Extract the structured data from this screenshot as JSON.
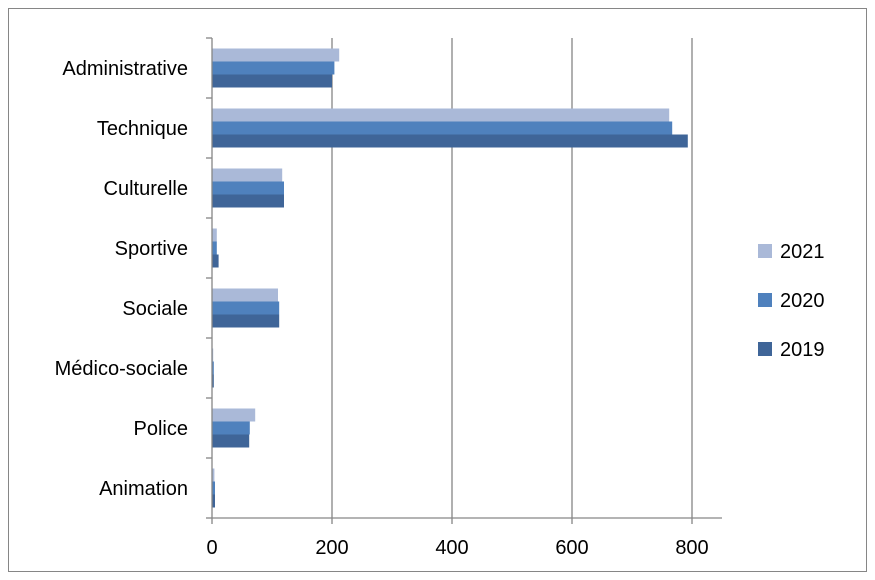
{
  "chart_data": {
    "type": "bar",
    "orientation": "horizontal",
    "title": "",
    "xlabel": "",
    "ylabel": "",
    "categories": [
      "Animation",
      "Police",
      "Médico-sociale",
      "Sociale",
      "Sportive",
      "Culturelle",
      "Technique",
      "Administrative"
    ],
    "series": [
      {
        "name": "2021",
        "color": "#AAB9D8",
        "values": [
          4,
          72,
          2,
          110,
          8,
          117,
          762,
          212
        ]
      },
      {
        "name": "2020",
        "color": "#4F81BD",
        "values": [
          5,
          63,
          3,
          112,
          8,
          120,
          767,
          204
        ]
      },
      {
        "name": "2019",
        "color": "#3F6598",
        "values": [
          5,
          62,
          3,
          112,
          11,
          120,
          793,
          200
        ]
      }
    ],
    "xlim": [
      0,
      850
    ],
    "xticks": [
      0,
      200,
      400,
      600,
      800
    ],
    "grid": "vertical major gridlines",
    "legend": "right",
    "legend_order": [
      "2021",
      "2020",
      "2019"
    ]
  }
}
